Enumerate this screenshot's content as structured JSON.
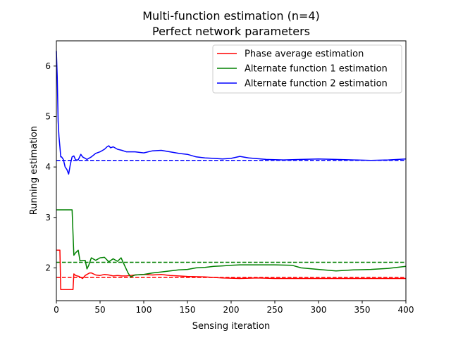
{
  "chart_data": {
    "type": "line",
    "title": "Multi-function estimation (n=4)",
    "subtitle": "Perfect network parameters",
    "xlabel": "Sensing iteration",
    "ylabel": "Running estimation",
    "xlim": [
      0,
      400
    ],
    "ylim": [
      1.35,
      6.5
    ],
    "xticks": [
      0,
      50,
      100,
      150,
      200,
      250,
      300,
      350,
      400
    ],
    "yticks": [
      2,
      3,
      4,
      5,
      6
    ],
    "grid": false,
    "legend_position": "top-right",
    "series": [
      {
        "name": "Phase average estimation",
        "color": "#ff0000",
        "reference": 1.81,
        "x": [
          0,
          4,
          5,
          19,
          20,
          22,
          26,
          30,
          33,
          38,
          40,
          45,
          50,
          55,
          60,
          65,
          70,
          75,
          80,
          90,
          100,
          110,
          120,
          130,
          140,
          150,
          170,
          190,
          210,
          230,
          250,
          270,
          300,
          330,
          360,
          400
        ],
        "y": [
          2.35,
          2.35,
          1.57,
          1.57,
          1.88,
          1.85,
          1.83,
          1.79,
          1.85,
          1.9,
          1.9,
          1.86,
          1.85,
          1.87,
          1.86,
          1.84,
          1.85,
          1.84,
          1.84,
          1.86,
          1.87,
          1.86,
          1.87,
          1.85,
          1.84,
          1.83,
          1.82,
          1.8,
          1.79,
          1.8,
          1.79,
          1.79,
          1.79,
          1.79,
          1.79,
          1.79
        ]
      },
      {
        "name": "Alternate function 1 estimation",
        "color": "#008000",
        "reference": 2.11,
        "x": [
          0,
          18,
          20,
          22,
          25,
          27,
          30,
          33,
          35,
          37,
          40,
          45,
          50,
          55,
          60,
          65,
          70,
          74,
          78,
          82,
          85,
          90,
          100,
          110,
          120,
          130,
          140,
          150,
          160,
          170,
          180,
          190,
          200,
          210,
          220,
          230,
          250,
          270,
          280,
          300,
          320,
          340,
          360,
          380,
          400
        ],
        "y": [
          3.15,
          3.15,
          2.25,
          2.3,
          2.35,
          2.14,
          2.15,
          2.15,
          1.98,
          2.05,
          2.2,
          2.15,
          2.2,
          2.21,
          2.12,
          2.18,
          2.13,
          2.2,
          2.05,
          1.9,
          1.82,
          1.86,
          1.87,
          1.9,
          1.92,
          1.94,
          1.96,
          1.97,
          2.0,
          2.01,
          2.03,
          2.04,
          2.05,
          2.06,
          2.06,
          2.06,
          2.06,
          2.05,
          2.0,
          1.97,
          1.94,
          1.96,
          1.97,
          1.99,
          2.03
        ]
      },
      {
        "name": "Alternate function 2 estimation",
        "color": "#0000ff",
        "reference": 4.13,
        "x": [
          0,
          1,
          2,
          3,
          4,
          5,
          6,
          8,
          10,
          12,
          14,
          16,
          18,
          20,
          22,
          25,
          28,
          30,
          35,
          40,
          45,
          50,
          55,
          58,
          60,
          62,
          65,
          70,
          75,
          80,
          90,
          100,
          110,
          120,
          130,
          140,
          150,
          160,
          170,
          180,
          190,
          200,
          210,
          220,
          240,
          260,
          280,
          300,
          320,
          340,
          360,
          380,
          400
        ],
        "y": [
          6.3,
          5.8,
          4.9,
          4.6,
          4.4,
          4.2,
          4.2,
          4.15,
          4.0,
          3.95,
          3.86,
          4.05,
          4.2,
          4.22,
          4.14,
          4.14,
          4.25,
          4.2,
          4.15,
          4.2,
          4.27,
          4.3,
          4.35,
          4.4,
          4.42,
          4.38,
          4.4,
          4.35,
          4.33,
          4.3,
          4.3,
          4.28,
          4.32,
          4.33,
          4.3,
          4.27,
          4.25,
          4.2,
          4.18,
          4.17,
          4.16,
          4.17,
          4.21,
          4.18,
          4.15,
          4.14,
          4.15,
          4.16,
          4.15,
          4.14,
          4.13,
          4.14,
          4.16
        ]
      }
    ]
  }
}
